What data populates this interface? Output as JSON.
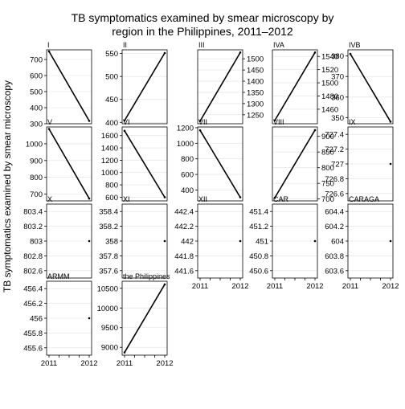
{
  "chart_data": {
    "type": "line",
    "title_lines": [
      "TB symptomatics examined by smear microscopy by",
      "region in the Philippines, 2011–2012"
    ],
    "ylabel": "TB symptomatics examined by smear microscopy",
    "xlabel": "",
    "x_ticks": [
      "2011",
      "2012"
    ],
    "grid": true,
    "panels": [
      {
        "name": "I",
        "x": [
          "2011",
          "2012"
        ],
        "values": [
          750,
          318
        ],
        "ylim": [
          300,
          760
        ],
        "yticks": [
          300,
          400,
          500,
          600,
          700
        ],
        "axis": "left"
      },
      {
        "name": "II",
        "x": [
          "2011",
          "2012"
        ],
        "values": [
          404,
          551
        ],
        "ylim": [
          397,
          558
        ],
        "yticks": [
          400,
          450,
          500,
          550
        ],
        "axis": "left"
      },
      {
        "name": "III",
        "x": [
          "2011",
          "2012"
        ],
        "values": [
          1222,
          1528
        ],
        "ylim": [
          1210,
          1540
        ],
        "yticks": [
          1250,
          1300,
          1350,
          1400,
          1450,
          1500
        ],
        "axis": "right"
      },
      {
        "name": "IVA",
        "x": [
          "2011",
          "2012"
        ],
        "values": [
          1443,
          1546
        ],
        "ylim": [
          1438,
          1550
        ],
        "yticks": [
          1460,
          1480,
          1500,
          1520,
          1540
        ],
        "axis": "right"
      },
      {
        "name": "IVB",
        "x": [
          "2011",
          "2012"
        ],
        "values": [
          381,
          348
        ],
        "ylim": [
          347,
          383
        ],
        "yticks": [
          350,
          360,
          370,
          380
        ],
        "axis": "left"
      },
      {
        "name": "V",
        "x": [
          "2011",
          "2012"
        ],
        "values": [
          1088,
          674
        ],
        "ylim": [
          660,
          1100
        ],
        "yticks": [
          700,
          800,
          900,
          1000
        ],
        "axis": "left"
      },
      {
        "name": "VI",
        "x": [
          "2011",
          "2012"
        ],
        "values": [
          1677,
          599
        ],
        "ylim": [
          540,
          1740
        ],
        "yticks": [
          600,
          800,
          1000,
          1200,
          1400,
          1600
        ],
        "axis": "left"
      },
      {
        "name": "VII",
        "x": [
          "2011",
          "2012"
        ],
        "values": [
          1167,
          306
        ],
        "ylim": [
          260,
          1210
        ],
        "yticks": [
          400,
          600,
          800,
          1000,
          1200
        ],
        "axis": "left"
      },
      {
        "name": "VIII",
        "x": [
          "2011",
          "2012"
        ],
        "values": [
          704,
          920
        ],
        "ylim": [
          694,
          930
        ],
        "yticks": [
          700,
          750,
          800,
          850,
          900
        ],
        "axis": "right"
      },
      {
        "name": "IX",
        "x": [
          "2012"
        ],
        "values": [
          727
        ],
        "ylim": [
          726.5,
          727.5
        ],
        "yticks": [
          726.6,
          726.8,
          727.0,
          727.2,
          727.4
        ],
        "axis": "left"
      },
      {
        "name": "X",
        "x": [
          "2012"
        ],
        "values": [
          803
        ],
        "ylim": [
          802.5,
          803.5
        ],
        "yticks": [
          802.6,
          802.8,
          803.0,
          803.2,
          803.4
        ],
        "axis": "left"
      },
      {
        "name": "XI",
        "x": [
          "2012"
        ],
        "values": [
          358
        ],
        "ylim": [
          357.5,
          358.5
        ],
        "yticks": [
          357.6,
          357.8,
          358.0,
          358.2,
          358.4
        ],
        "axis": "left"
      },
      {
        "name": "XII",
        "x": [
          "2012"
        ],
        "values": [
          442
        ],
        "ylim": [
          441.5,
          442.5
        ],
        "yticks": [
          441.6,
          441.8,
          442.0,
          442.2,
          442.4
        ],
        "axis": "left"
      },
      {
        "name": "CAR",
        "x": [
          "2012"
        ],
        "values": [
          451
        ],
        "ylim": [
          450.5,
          451.5
        ],
        "yticks": [
          450.6,
          450.8,
          451.0,
          451.2,
          451.4
        ],
        "axis": "left"
      },
      {
        "name": "CARAGA",
        "x": [
          "2012"
        ],
        "values": [
          604
        ],
        "ylim": [
          603.5,
          604.5
        ],
        "yticks": [
          603.6,
          603.8,
          604.0,
          604.2,
          604.4
        ],
        "axis": "left"
      },
      {
        "name": "ARMM",
        "x": [
          "2012"
        ],
        "values": [
          456
        ],
        "ylim": [
          455.5,
          456.5
        ],
        "yticks": [
          455.6,
          455.8,
          456.0,
          456.2,
          456.4
        ],
        "axis": "left"
      },
      {
        "name": "the Philippines",
        "x": [
          "2011",
          "2012"
        ],
        "values": [
          8870,
          10600
        ],
        "ylim": [
          8800,
          10680
        ],
        "yticks": [
          9000,
          9500,
          10000,
          10500
        ],
        "axis": "left"
      }
    ],
    "colors": {
      "line": "#000000",
      "panel_border": "#000000",
      "grid": "#e0e0e0",
      "background": "#ffffff"
    }
  }
}
